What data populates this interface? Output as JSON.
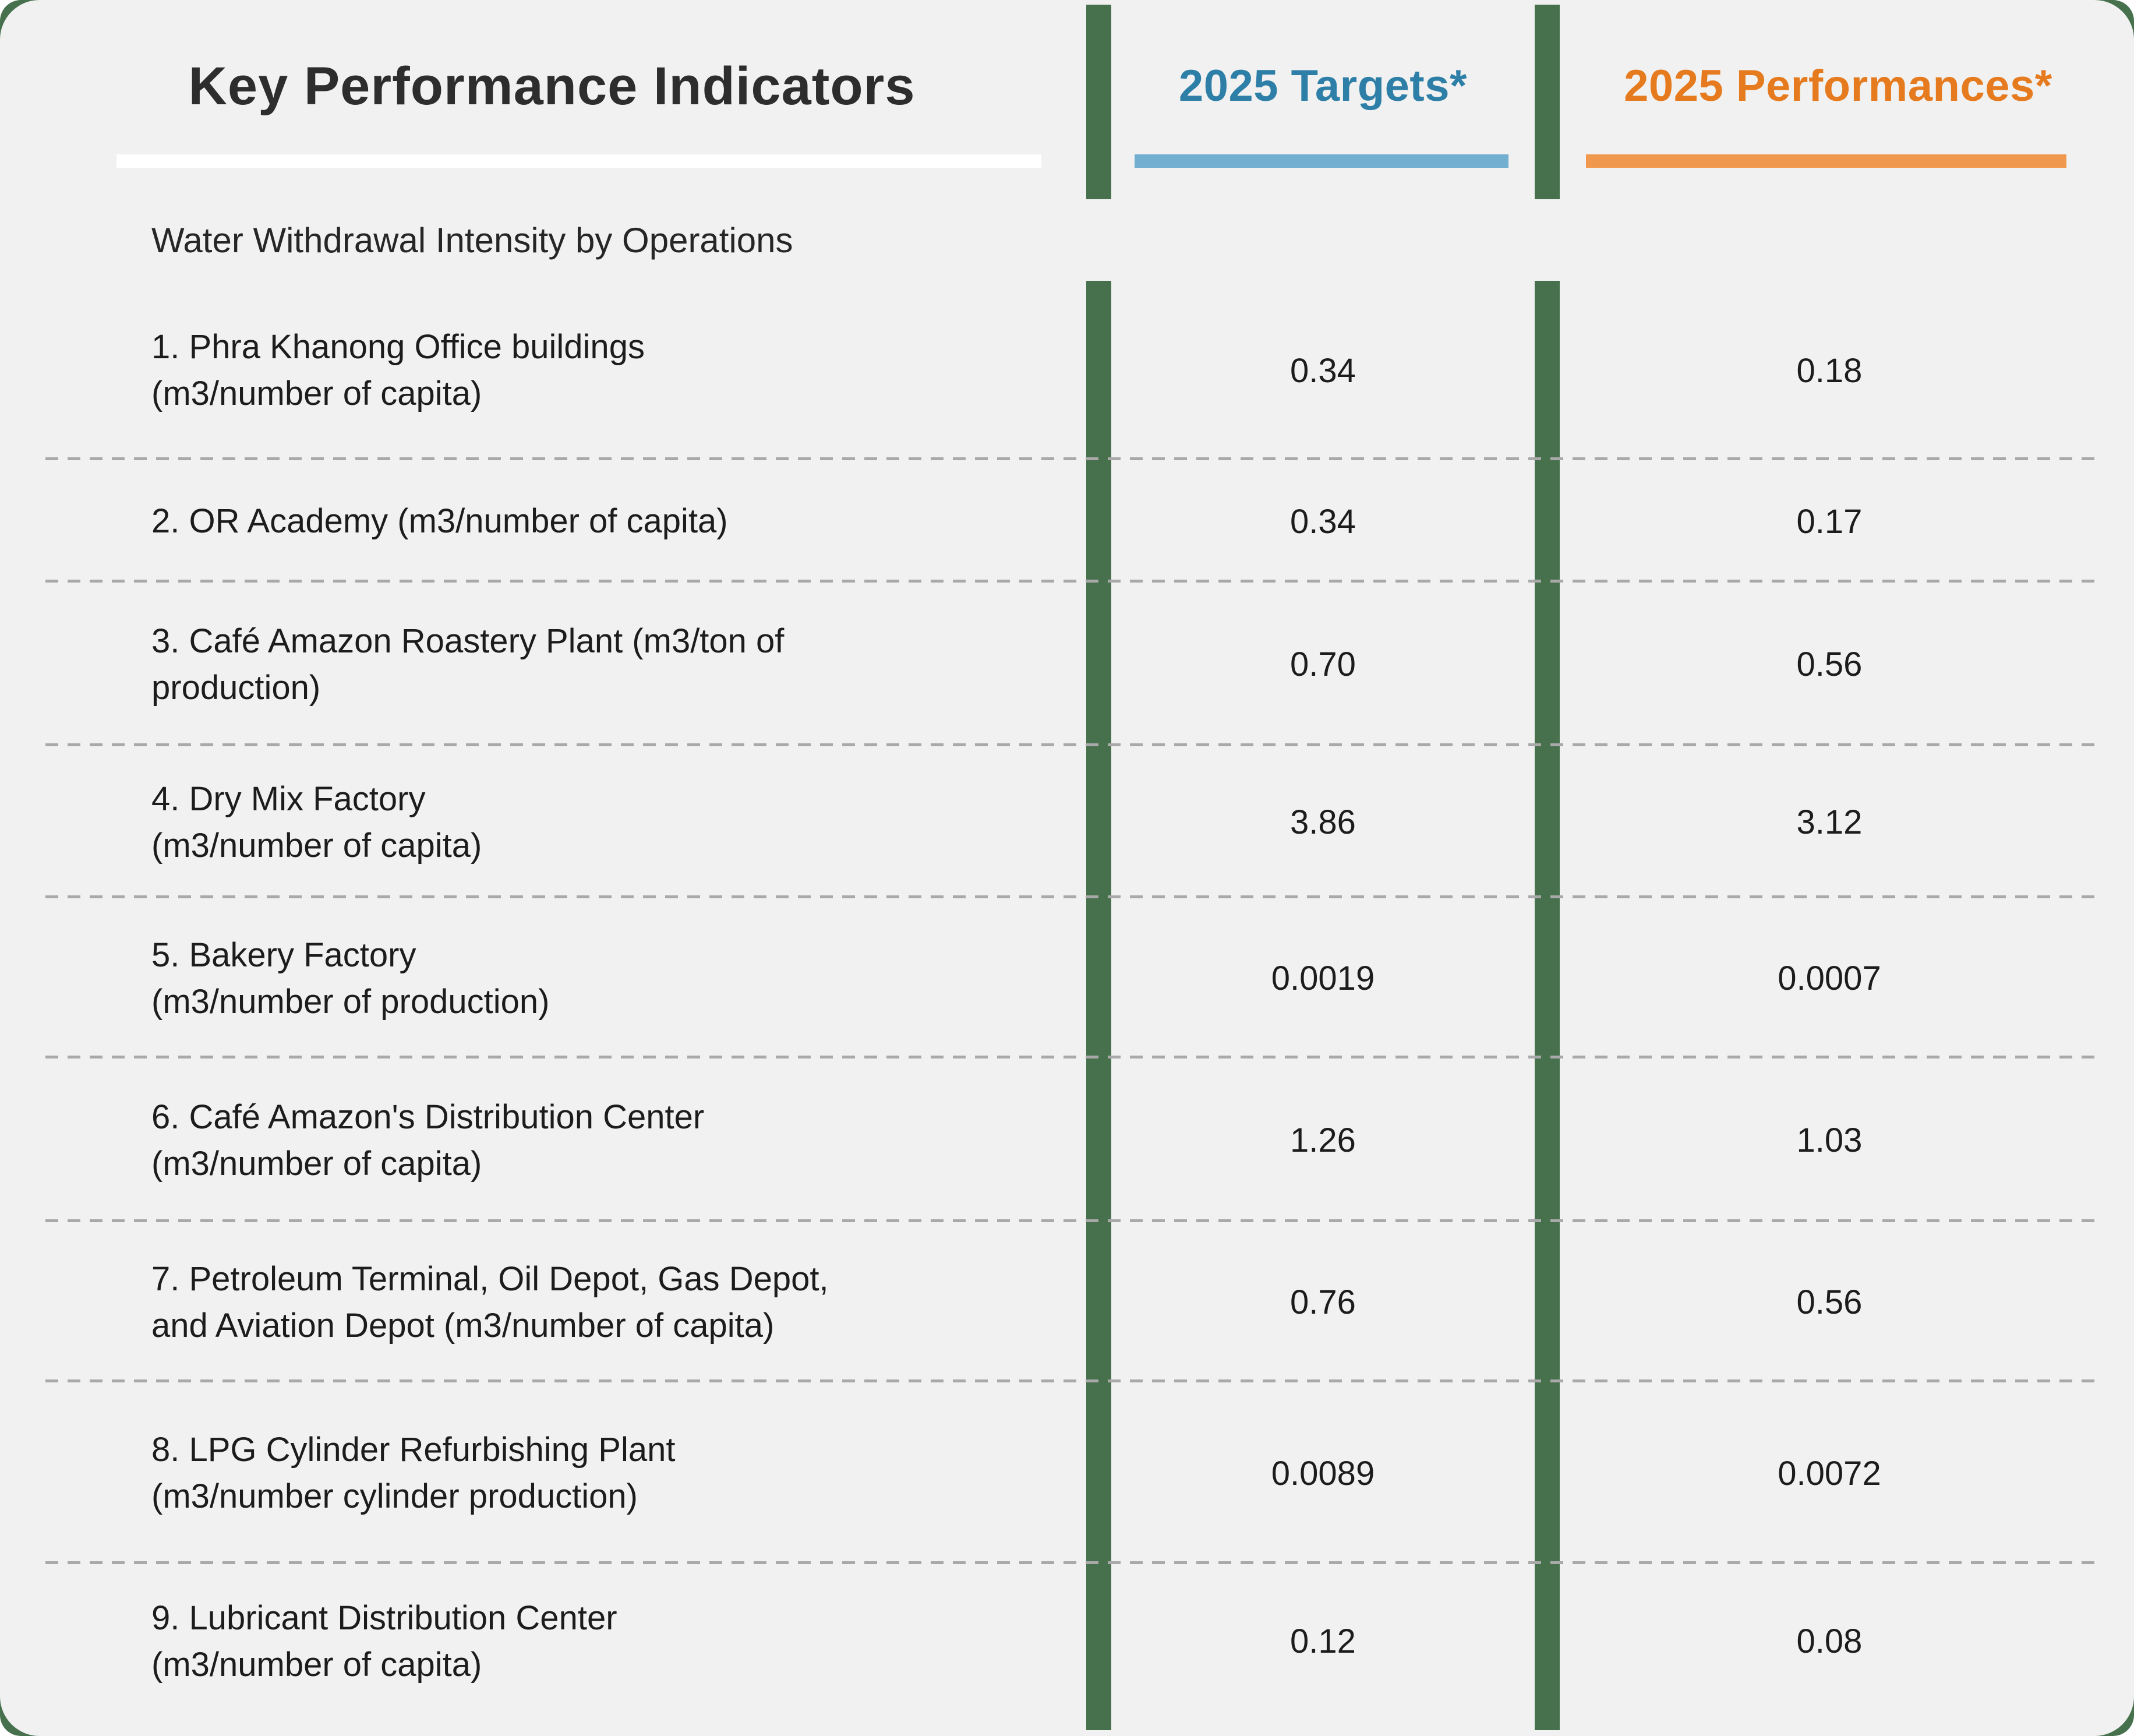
{
  "header": {
    "title": "Key Performance Indicators",
    "columns": [
      {
        "label": "2025 Targets*",
        "text_color": "#2e7fa7",
        "bar_color": "#72aed0"
      },
      {
        "label": "2025 Performances*",
        "text_color": "#e67a1e",
        "bar_color": "#f0994e"
      }
    ]
  },
  "section": {
    "label": "Water Withdrawal Intensity by Operations"
  },
  "rows": [
    {
      "lines": [
        "1. Phra Khanong Office buildings",
        "(m3/number of capita)"
      ],
      "target": "0.34",
      "performance": "0.18"
    },
    {
      "lines": [
        "2. OR Academy (m3/number of capita)",
        ""
      ],
      "target": "0.34",
      "performance": "0.17"
    },
    {
      "lines": [
        "3. Café Amazon Roastery Plant (m3/ton of",
        "production)"
      ],
      "target": "0.70",
      "performance": "0.56"
    },
    {
      "lines": [
        "4. Dry Mix Factory",
        "(m3/number of capita)"
      ],
      "target": "3.86",
      "performance": "3.12"
    },
    {
      "lines": [
        "5. Bakery Factory",
        "(m3/number of production)"
      ],
      "target": "0.0019",
      "performance": "0.0007"
    },
    {
      "lines": [
        "6. Café Amazon's Distribution Center",
        "(m3/number of capita)"
      ],
      "target": "1.26",
      "performance": "1.03"
    },
    {
      "lines": [
        "7. Petroleum Terminal, Oil Depot, Gas Depot,",
        "and Aviation Depot (m3/number of capita)"
      ],
      "target": "0.76",
      "performance": "0.56"
    },
    {
      "lines": [
        "8. LPG Cylinder Refurbishing Plant",
        "(m3/number cylinder production)"
      ],
      "target": "0.0089",
      "performance": "0.0072"
    },
    {
      "lines": [
        "9. Lubricant Distribution Center",
        "(m3/number of capita)"
      ],
      "target": "0.12",
      "performance": "0.08"
    }
  ],
  "style": {
    "divider_green": "#47714d",
    "card_background": "#f0f1f0",
    "page_background": "#ffffff",
    "title_underline": "#ffffff",
    "dash_color": "#a9a9a9",
    "text_color": "#1c1c1c"
  },
  "chart_data": {
    "type": "table",
    "title": "Key Performance Indicators",
    "section": "Water Withdrawal Intensity by Operations",
    "columns": [
      "Key Performance Indicators",
      "2025 Targets*",
      "2025 Performances*"
    ],
    "rows": [
      {
        "indicator": "1. Phra Khanong Office buildings (m3/number of capita)",
        "target_2025": 0.34,
        "performance_2025": 0.18
      },
      {
        "indicator": "2. OR Academy (m3/number of capita)",
        "target_2025": 0.34,
        "performance_2025": 0.17
      },
      {
        "indicator": "3. Café Amazon Roastery Plant (m3/ton of production)",
        "target_2025": 0.7,
        "performance_2025": 0.56
      },
      {
        "indicator": "4. Dry Mix Factory (m3/number of capita)",
        "target_2025": 3.86,
        "performance_2025": 3.12
      },
      {
        "indicator": "5. Bakery Factory (m3/number of production)",
        "target_2025": 0.0019,
        "performance_2025": 0.0007
      },
      {
        "indicator": "6. Café Amazon's Distribution Center (m3/number of capita)",
        "target_2025": 1.26,
        "performance_2025": 1.03
      },
      {
        "indicator": "7. Petroleum Terminal, Oil Depot, Gas Depot, and Aviation Depot (m3/number of capita)",
        "target_2025": 0.76,
        "performance_2025": 0.56
      },
      {
        "indicator": "8. LPG Cylinder Refurbishing Plant (m3/number cylinder production)",
        "target_2025": 0.0089,
        "performance_2025": 0.0072
      },
      {
        "indicator": "9. Lubricant Distribution Center (m3/number of capita)",
        "target_2025": 0.12,
        "performance_2025": 0.08
      }
    ]
  }
}
